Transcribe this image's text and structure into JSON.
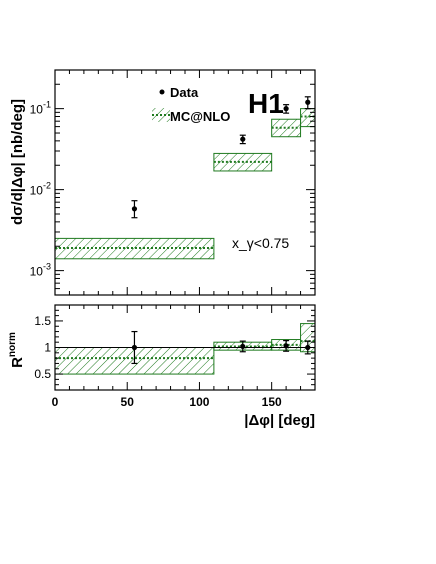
{
  "colors": {
    "mc": "#1f7a1f",
    "data": "#000000"
  },
  "labels": {
    "h1_logo": "H1",
    "cut_label": "x_γ<0.75",
    "top_ylabel": "dσ/d|Δφ| [nb/deg]",
    "bottom_ylabel_main": "R",
    "bottom_ylabel_sup": "norm",
    "xlabel": "|Δφ| [deg]",
    "legend_data": "Data",
    "legend_mc": "MC@NLO"
  },
  "chart_data": [
    {
      "type": "scatter",
      "scale": "log",
      "ylim": [
        0.0005,
        0.3
      ],
      "xlim": [
        0,
        180
      ],
      "yticks": [
        {
          "v": 0.001,
          "base": "10",
          "exp": "-3"
        },
        {
          "v": 0.01,
          "base": "10",
          "exp": "-2"
        },
        {
          "v": 0.1,
          "base": "10",
          "exp": "-1"
        }
      ],
      "data": [
        {
          "x": 55,
          "y": 0.0058,
          "err_lo": 0.0013,
          "err_hi": 0.0015
        },
        {
          "x": 130,
          "y": 0.042,
          "err_lo": 0.005,
          "err_hi": 0.005
        },
        {
          "x": 160,
          "y": 0.1,
          "err_lo": 0.012,
          "err_hi": 0.012
        },
        {
          "x": 175,
          "y": 0.12,
          "err_lo": 0.02,
          "err_hi": 0.02
        }
      ],
      "mc": [
        {
          "x0": 0,
          "x1": 110,
          "y": 0.0019,
          "lo": 0.0014,
          "hi": 0.0025
        },
        {
          "x0": 110,
          "x1": 150,
          "y": 0.022,
          "lo": 0.017,
          "hi": 0.028
        },
        {
          "x0": 150,
          "x1": 170,
          "y": 0.058,
          "lo": 0.045,
          "hi": 0.074
        },
        {
          "x0": 170,
          "x1": 180,
          "y": 0.08,
          "lo": 0.06,
          "hi": 0.1
        }
      ]
    },
    {
      "type": "scatter",
      "scale": "linear",
      "ylim": [
        0.2,
        1.8
      ],
      "xlim": [
        0,
        180
      ],
      "yticks": [
        0.5,
        1,
        1.5
      ],
      "xticks": [
        0,
        50,
        100,
        150
      ],
      "reference_line": 1,
      "data": [
        {
          "x": 55,
          "y": 1.0,
          "err_lo": 0.3,
          "err_hi": 0.3
        },
        {
          "x": 130,
          "y": 1.02,
          "err_lo": 0.1,
          "err_hi": 0.1
        },
        {
          "x": 160,
          "y": 1.03,
          "err_lo": 0.1,
          "err_hi": 0.1
        },
        {
          "x": 175,
          "y": 1.0,
          "err_lo": 0.12,
          "err_hi": 0.12
        }
      ],
      "mc": [
        {
          "x0": 0,
          "x1": 110,
          "y": 0.8,
          "lo": 0.5,
          "hi": 1.0
        },
        {
          "x0": 110,
          "x1": 150,
          "y": 1.02,
          "lo": 0.95,
          "hi": 1.1
        },
        {
          "x0": 150,
          "x1": 170,
          "y": 1.05,
          "lo": 0.95,
          "hi": 1.15
        },
        {
          "x0": 170,
          "x1": 180,
          "y": 1.12,
          "lo": 0.92,
          "hi": 1.45
        }
      ]
    }
  ]
}
